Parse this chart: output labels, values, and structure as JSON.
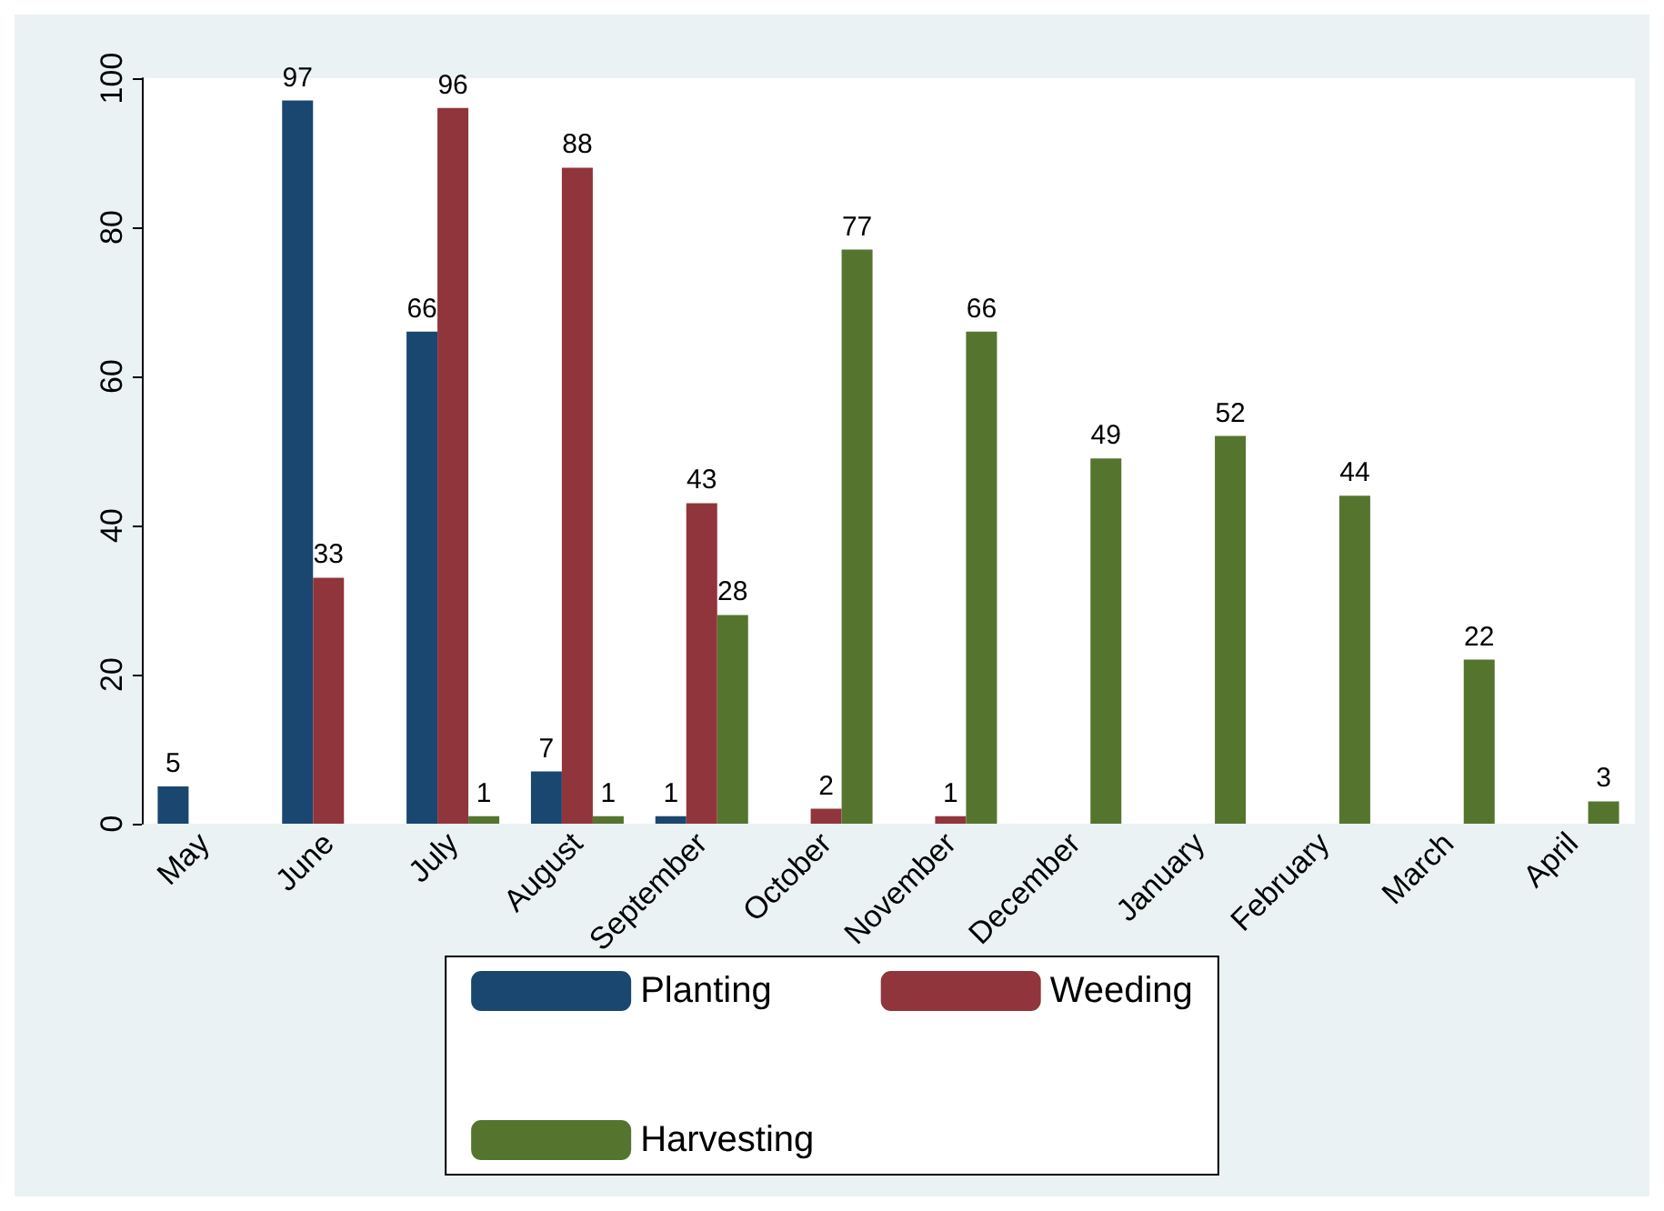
{
  "chart_data": {
    "type": "bar",
    "categories": [
      "May",
      "June",
      "July",
      "August",
      "September",
      "October",
      "November",
      "December",
      "January",
      "February",
      "March",
      "April"
    ],
    "series": [
      {
        "name": "Planting",
        "color": "#1a476f",
        "values": [
          5,
          97,
          66,
          7,
          1,
          null,
          null,
          null,
          null,
          null,
          null,
          null
        ]
      },
      {
        "name": "Weeding",
        "color": "#90353b",
        "values": [
          null,
          33,
          96,
          88,
          43,
          2,
          1,
          null,
          null,
          null,
          null,
          null
        ]
      },
      {
        "name": "Harvesting",
        "color": "#55752f",
        "values": [
          null,
          null,
          1,
          1,
          28,
          77,
          66,
          49,
          52,
          44,
          22,
          3
        ]
      }
    ],
    "ylim": [
      0,
      100
    ],
    "yticks": [
      0,
      20,
      40,
      60,
      80,
      100
    ],
    "grid": false,
    "legend": "bottom",
    "data_labels": true
  }
}
